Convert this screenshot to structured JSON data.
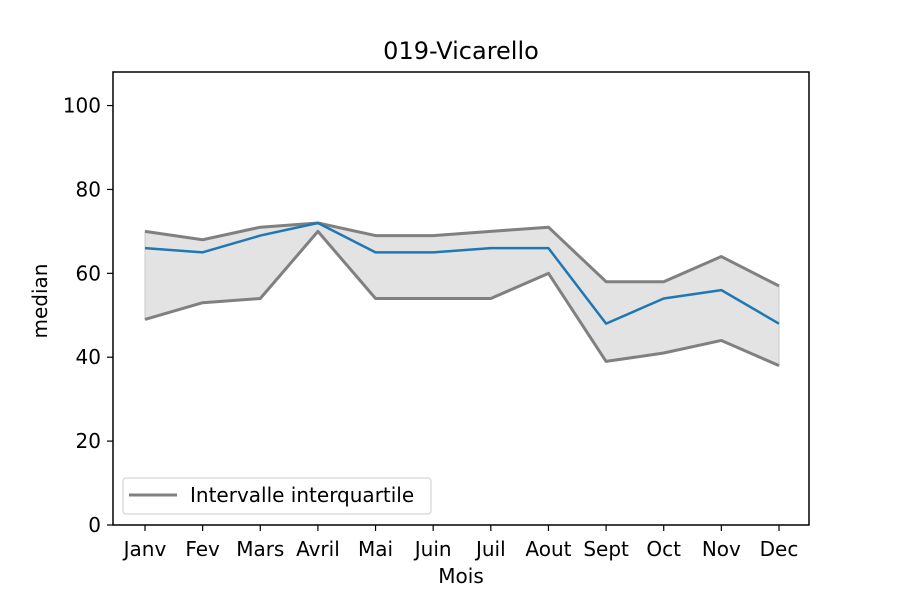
{
  "chart_data": {
    "type": "line",
    "title": "019-Vicarello",
    "xlabel": "Mois",
    "ylabel": "median",
    "categories": [
      "Janv",
      "Fev",
      "Mars",
      "Avril",
      "Mai",
      "Juin",
      "Juil",
      "Aout",
      "Sept",
      "Oct",
      "Nov",
      "Dec"
    ],
    "ylim": [
      0,
      108
    ],
    "yticks": [
      0,
      20,
      40,
      60,
      80,
      100
    ],
    "series": [
      {
        "key": "median",
        "values": [
          66,
          65,
          69,
          72,
          65,
          65,
          66,
          66,
          48,
          54,
          56,
          48
        ],
        "color": "#1f77b4"
      },
      {
        "key": "q3",
        "name": "Intervalle interquartile",
        "values": [
          70,
          68,
          71,
          72,
          69,
          69,
          70,
          71,
          58,
          58,
          64,
          57
        ],
        "color": "#808080"
      },
      {
        "key": "q1",
        "values": [
          49,
          53,
          54,
          70,
          54,
          54,
          54,
          60,
          39,
          41,
          44,
          38
        ],
        "color": "#808080"
      }
    ],
    "band": {
      "upper": "q3",
      "lower": "q1",
      "color": "#e3e3e3"
    },
    "legend": {
      "position": "lower-left",
      "entries": [
        "Intervalle interquartile"
      ]
    },
    "grid": false
  }
}
